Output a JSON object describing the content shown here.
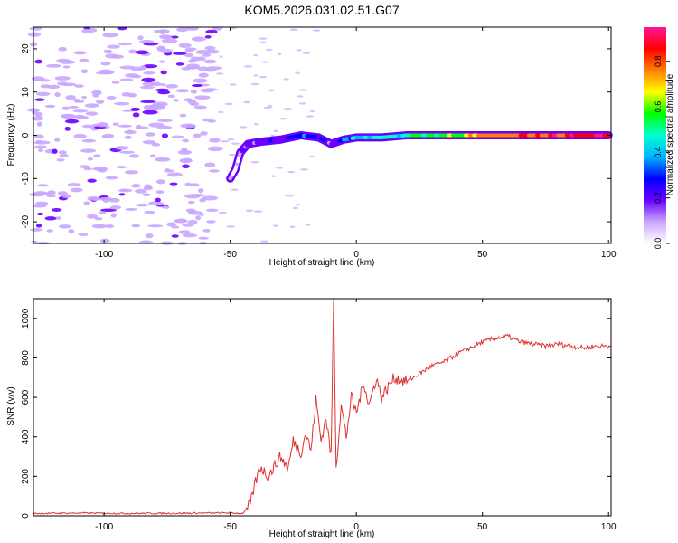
{
  "title": "KOM5.2026.031.02.51.G07",
  "chart_data": [
    {
      "type": "heatmap",
      "name": "spectrogram",
      "xlabel": "Height of straight line (km)",
      "ylabel": "Frequency (Hz)",
      "xlim": [
        -128,
        101
      ],
      "ylim": [
        -25,
        25
      ],
      "xticks": [
        -100,
        -50,
        0,
        50,
        100
      ],
      "yticks": [
        -20,
        -10,
        0,
        10,
        20
      ],
      "colorbar": {
        "label": "Normalized spectral amplitude",
        "range": [
          0,
          0.95
        ],
        "ticks": [
          0.0,
          0.2,
          0.4,
          0.6,
          0.8
        ],
        "colors": [
          "#ffffff",
          "#c9a6ff",
          "#6a00ff",
          "#0000ff",
          "#00b4ff",
          "#00ffd0",
          "#00ff00",
          "#ffff00",
          "#ff7f00",
          "#ff0000",
          "#ff1493"
        ]
      },
      "signal_track": [
        {
          "x": -50,
          "y": -10,
          "a": 0.05
        },
        {
          "x": -48,
          "y": -8,
          "a": 0.06
        },
        {
          "x": -46,
          "y": -4,
          "a": 0.1
        },
        {
          "x": -43,
          "y": -2,
          "a": 0.15
        },
        {
          "x": -38,
          "y": -1.5,
          "a": 0.2
        },
        {
          "x": -30,
          "y": -1,
          "a": 0.25
        },
        {
          "x": -22,
          "y": 0,
          "a": 0.3
        },
        {
          "x": -15,
          "y": -0.5,
          "a": 0.25
        },
        {
          "x": -10,
          "y": -2,
          "a": 0.15
        },
        {
          "x": -5,
          "y": -1,
          "a": 0.35
        },
        {
          "x": 0,
          "y": -0.5,
          "a": 0.4
        },
        {
          "x": 10,
          "y": -0.5,
          "a": 0.45
        },
        {
          "x": 20,
          "y": 0,
          "a": 0.5
        },
        {
          "x": 30,
          "y": 0,
          "a": 0.55
        },
        {
          "x": 40,
          "y": 0,
          "a": 0.6
        },
        {
          "x": 50,
          "y": 0,
          "a": 0.7
        },
        {
          "x": 60,
          "y": 0,
          "a": 0.75
        },
        {
          "x": 70,
          "y": 0,
          "a": 0.8
        },
        {
          "x": 80,
          "y": 0,
          "a": 0.85
        },
        {
          "x": 90,
          "y": 0,
          "a": 0.85
        },
        {
          "x": 100,
          "y": 0,
          "a": 0.9
        }
      ]
    },
    {
      "type": "line",
      "name": "snr",
      "xlabel": "Height of straight line (km)",
      "ylabel": "SNR (v/v)",
      "xlim": [
        -128,
        101
      ],
      "ylim": [
        0,
        1100
      ],
      "xticks": [
        -100,
        -50,
        0,
        50,
        100
      ],
      "yticks": [
        0,
        200,
        400,
        600,
        800,
        1000
      ],
      "color": "#e03030",
      "series": [
        {
          "x": -128,
          "y": 12
        },
        {
          "x": -110,
          "y": 14
        },
        {
          "x": -90,
          "y": 12
        },
        {
          "x": -70,
          "y": 13
        },
        {
          "x": -50,
          "y": 15
        },
        {
          "x": -45,
          "y": 12
        },
        {
          "x": -42,
          "y": 60
        },
        {
          "x": -40,
          "y": 170
        },
        {
          "x": -38,
          "y": 250
        },
        {
          "x": -35,
          "y": 200
        },
        {
          "x": -30,
          "y": 300
        },
        {
          "x": -27,
          "y": 240
        },
        {
          "x": -25,
          "y": 380
        },
        {
          "x": -22,
          "y": 320
        },
        {
          "x": -20,
          "y": 420
        },
        {
          "x": -18,
          "y": 330
        },
        {
          "x": -16,
          "y": 590
        },
        {
          "x": -14,
          "y": 380
        },
        {
          "x": -12,
          "y": 500
        },
        {
          "x": -10,
          "y": 300
        },
        {
          "x": -9,
          "y": 1100
        },
        {
          "x": -8,
          "y": 250
        },
        {
          "x": -6,
          "y": 560
        },
        {
          "x": -4,
          "y": 400
        },
        {
          "x": -2,
          "y": 600
        },
        {
          "x": 0,
          "y": 520
        },
        {
          "x": 3,
          "y": 680
        },
        {
          "x": 5,
          "y": 560
        },
        {
          "x": 8,
          "y": 700
        },
        {
          "x": 10,
          "y": 600
        },
        {
          "x": 15,
          "y": 700
        },
        {
          "x": 20,
          "y": 680
        },
        {
          "x": 25,
          "y": 720
        },
        {
          "x": 30,
          "y": 760
        },
        {
          "x": 35,
          "y": 780
        },
        {
          "x": 40,
          "y": 820
        },
        {
          "x": 45,
          "y": 850
        },
        {
          "x": 50,
          "y": 880
        },
        {
          "x": 55,
          "y": 900
        },
        {
          "x": 60,
          "y": 910
        },
        {
          "x": 65,
          "y": 880
        },
        {
          "x": 70,
          "y": 870
        },
        {
          "x": 75,
          "y": 860
        },
        {
          "x": 80,
          "y": 870
        },
        {
          "x": 85,
          "y": 860
        },
        {
          "x": 90,
          "y": 850
        },
        {
          "x": 95,
          "y": 860
        },
        {
          "x": 101,
          "y": 860
        }
      ]
    }
  ]
}
